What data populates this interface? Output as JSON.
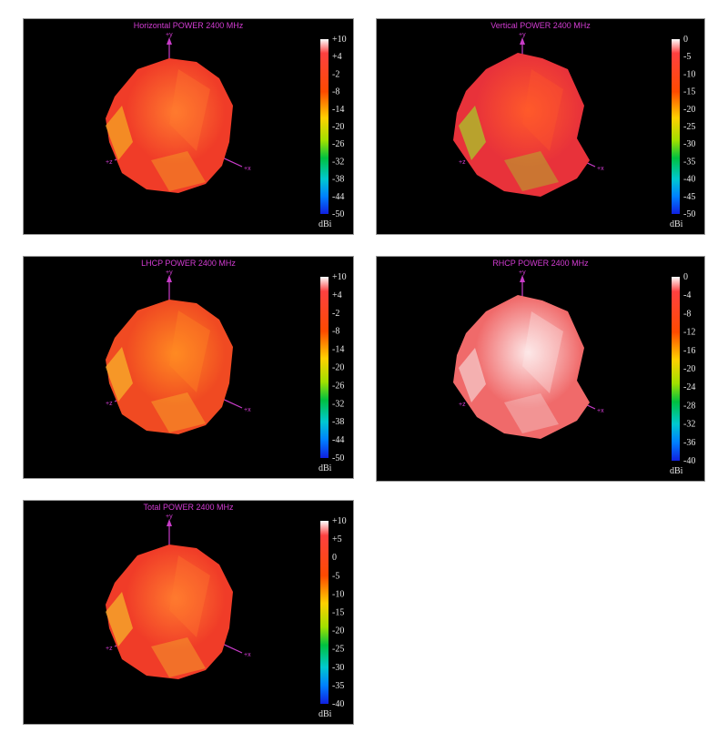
{
  "chart_data": [
    {
      "type": "3d-radiation-pattern",
      "title": "Horizontal POWER 2400  MHz",
      "axes": [
        "+y",
        "+x",
        "+z"
      ],
      "colorbar": {
        "ticks": [
          "+10",
          "+4",
          "-2",
          "-8",
          "-14",
          "-20",
          "-26",
          "-32",
          "-38",
          "-44",
          "-50"
        ],
        "range": [
          -50,
          10
        ],
        "unit": "dBi"
      },
      "shape": "blob",
      "base_color": "#f03c28",
      "highlight_color": "#ff7a2e",
      "accent_color": "#f5a623"
    },
    {
      "type": "3d-radiation-pattern",
      "title": "Vertical POWER 2400  MHz",
      "axes": [
        "+y",
        "+x",
        "+z"
      ],
      "colorbar": {
        "ticks": [
          "0",
          "-5",
          "-10",
          "-15",
          "-20",
          "-25",
          "-30",
          "-35",
          "-40",
          "-45",
          "-50"
        ],
        "range": [
          -50,
          0
        ],
        "unit": "dBi"
      },
      "shape": "faceted",
      "base_color": "#e8323a",
      "highlight_color": "#ff5a2a",
      "accent_color": "#a8c82a"
    },
    {
      "type": "3d-radiation-pattern",
      "title": "LHCP POWER 2400  MHz",
      "axes": [
        "+y",
        "+x",
        "+z"
      ],
      "colorbar": {
        "ticks": [
          "+10",
          "+4",
          "-2",
          "-8",
          "-14",
          "-20",
          "-26",
          "-32",
          "-38",
          "-44",
          "-50"
        ],
        "range": [
          -50,
          10
        ],
        "unit": "dBi"
      },
      "shape": "blob",
      "base_color": "#f04a22",
      "highlight_color": "#ff8a22",
      "accent_color": "#f8b22a"
    },
    {
      "type": "3d-radiation-pattern",
      "title": "RHCP POWER 2400  MHz",
      "axes": [
        "+y",
        "+x",
        "+z"
      ],
      "colorbar": {
        "ticks": [
          "0",
          "-4",
          "-8",
          "-12",
          "-16",
          "-20",
          "-24",
          "-28",
          "-32",
          "-36",
          "-40"
        ],
        "range": [
          -40,
          0
        ],
        "unit": "dBi"
      },
      "shape": "faceted",
      "base_color": "#f06a6a",
      "highlight_color": "#fde8e8",
      "accent_color": "#f5c8c8"
    },
    {
      "type": "3d-radiation-pattern",
      "title": "Total POWER 2400  MHz",
      "axes": [
        "+y",
        "+x",
        "+z"
      ],
      "colorbar": {
        "ticks": [
          "+10",
          "+5",
          "0",
          "-5",
          "-10",
          "-15",
          "-20",
          "-25",
          "-30",
          "-35",
          "-40"
        ],
        "range": [
          -40,
          10
        ],
        "unit": "dBi"
      },
      "shape": "blob",
      "base_color": "#f03c28",
      "highlight_color": "#ff7a2e",
      "accent_color": "#f5b02a"
    }
  ]
}
